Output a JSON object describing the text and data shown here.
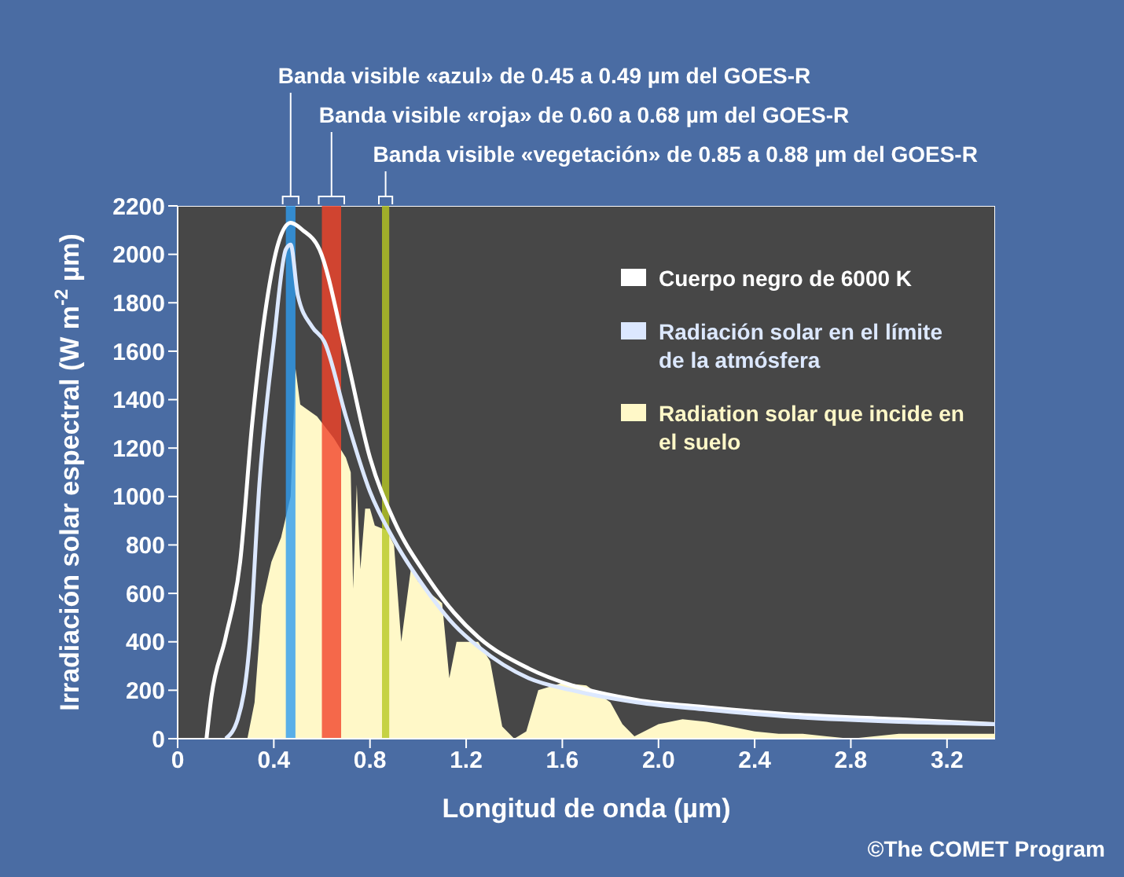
{
  "chart_data": {
    "type": "line",
    "xlabel": "Longitud de onda (µm)",
    "ylabel": "Irradiación solar espectral (W m$^{-2}$ µm)",
    "xlim": [
      0,
      3.4
    ],
    "xticks": [
      0,
      0.4,
      0.8,
      1.2,
      1.6,
      {
        "value": 2,
        "label": "2.0"
      },
      2.4,
      2.8,
      3.2
    ],
    "ylim": [
      0,
      2200
    ],
    "yticks": [
      0,
      200,
      400,
      600,
      800,
      1000,
      1200,
      1400,
      1600,
      1800,
      2000,
      2200
    ],
    "grid": false,
    "legend": "top right",
    "marker": "none",
    "line_style": "solid",
    "series": [
      {
        "name": "Cuerpo negro de 6000 K",
        "color": "#ffffff",
        "x": [
          0.12,
          0.14,
          0.2,
          0.26,
          0.31,
          0.37,
          0.42,
          0.47,
          0.52,
          0.59,
          0.7,
          0.8,
          0.9,
          1.03,
          1.15,
          1.25,
          1.46,
          1.64,
          1.91,
          2.2,
          2.56,
          3.0,
          3.4
        ],
        "values": [
          0,
          170,
          420,
          730,
          1300,
          1800,
          2050,
          2130,
          2100,
          2020,
          1590,
          1160,
          900,
          680,
          520,
          420,
          290,
          220,
          160,
          130,
          100,
          80,
          60
        ]
      },
      {
        "name": "Radiación solar  en el límite de la atmósfera",
        "color": "#dce8ff",
        "x": [
          0.2,
          0.25,
          0.3,
          0.34,
          0.4,
          0.45,
          0.47,
          0.5,
          0.56,
          0.61,
          0.7,
          0.8,
          0.9,
          1.03,
          1.15,
          1.25,
          1.46,
          1.64,
          1.91,
          2.2,
          2.56,
          3.0,
          3.4
        ],
        "values": [
          0,
          80,
          400,
          1050,
          1640,
          2020,
          2040,
          1830,
          1700,
          1640,
          1330,
          1020,
          820,
          620,
          470,
          380,
          250,
          200,
          150,
          120,
          90,
          70,
          60
        ]
      },
      {
        "name": "Radiation solar que incide en el suelo",
        "color": "#fff8c8",
        "type": "area",
        "x": [
          0.29,
          0.32,
          0.35,
          0.39,
          0.43,
          0.47,
          0.49,
          0.51,
          0.58,
          0.65,
          0.7,
          0.72,
          0.73,
          0.745,
          0.76,
          0.78,
          0.8,
          0.82,
          0.87,
          0.9,
          0.93,
          0.97,
          1.0,
          1.05,
          1.1,
          1.13,
          1.16,
          1.25,
          1.3,
          1.35,
          1.4,
          1.45,
          1.5,
          1.6,
          1.7,
          1.8,
          1.85,
          1.9,
          2.0,
          2.1,
          2.2,
          2.3,
          2.4,
          2.5,
          2.6,
          2.7,
          2.8,
          3.0,
          3.2,
          3.4
        ],
        "values": [
          0,
          150,
          550,
          730,
          830,
          1000,
          1530,
          1380,
          1330,
          1240,
          1160,
          1100,
          620,
          1050,
          700,
          950,
          950,
          880,
          860,
          800,
          400,
          700,
          650,
          600,
          560,
          250,
          400,
          400,
          320,
          50,
          0,
          30,
          200,
          230,
          220,
          150,
          60,
          10,
          60,
          80,
          70,
          50,
          30,
          20,
          20,
          10,
          0,
          20,
          20,
          20
        ]
      }
    ],
    "bands": [
      {
        "axis": "x",
        "from": 0.45,
        "to": 0.49,
        "label": "Banda visible «azul» de 0.45 a 0.49 µm del GOES-R",
        "color": "#2f9cf0"
      },
      {
        "axis": "x",
        "from": 0.6,
        "to": 0.68,
        "label": "Banda visible «roja» de 0.60 a 0.68 µm del GOES-R",
        "color": "#f2432b"
      },
      {
        "axis": "x",
        "from": 0.85,
        "to": 0.88,
        "label": "Banda visible «vegetación» de 0.85 a 0.88 µm del GOES-R",
        "color": "#b6c823"
      }
    ],
    "annotations": [
      "©The COMET Program"
    ]
  }
}
